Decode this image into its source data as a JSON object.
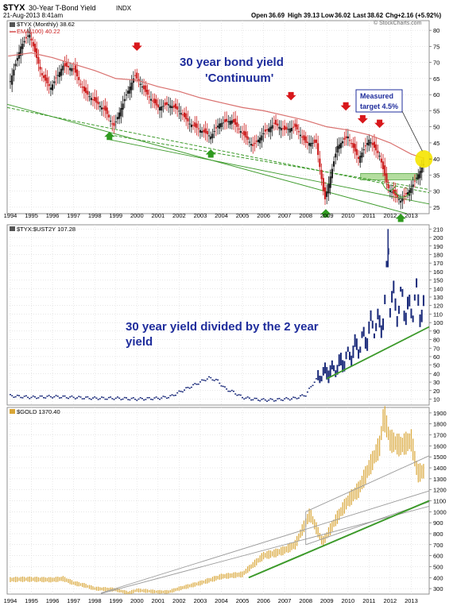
{
  "header": {
    "symbol": "$TYX",
    "name": "30-Year T-Bond Yield",
    "exchange": "INDX",
    "date": "21-Aug-2013 8:41am",
    "open_label": "Open",
    "open": "36.69",
    "high_label": "High",
    "high": "39.13",
    "low_label": "Low",
    "low": "36.02",
    "last_label": "Last",
    "last": "38.62",
    "chg_label": "Chg",
    "chg": "+2.16 (+5.92%)",
    "brand": "© StockCharts.com"
  },
  "colors": {
    "price_up": "#1a1a1a",
    "price_down": "#cc1f1f",
    "ema": "#d9706e",
    "support": "#3c9a2a",
    "ratio": "#1a2a7a",
    "gold": "#d9a637",
    "channel": "#9a9a9a",
    "annotation": "#1f2d9c",
    "highlight": "#f5e400"
  },
  "chart_data": [
    {
      "type": "line",
      "panel": "top",
      "legend": [
        "$TYX (Monthly) 38.62",
        "EMA(100) 40.22"
      ],
      "title": "30 year bond yield 'Continuum'",
      "annotation_lines": [
        "30 year bond yield",
        "'Continuum'"
      ],
      "callout_lines": [
        "Measured",
        "target 4.5%"
      ],
      "ylim": [
        23,
        83
      ],
      "yticks": [
        25,
        30,
        35,
        40,
        45,
        50,
        55,
        60,
        65,
        70,
        75,
        80
      ],
      "xticks": [
        "1994",
        "1995",
        "1996",
        "1997",
        "1998",
        "1999",
        "2000",
        "2001",
        "2002",
        "2003",
        "2004",
        "2005",
        "2006",
        "2007",
        "2008",
        "2009",
        "2010",
        "2011",
        "2012",
        "2013"
      ],
      "xlim": [
        1993.85,
        2013.85
      ],
      "series": [
        {
          "x": [
            1993.9,
            1994.5,
            1994.9,
            1995.5,
            1995.9,
            1996.5,
            1997.0,
            1997.5,
            1998.0,
            1998.5,
            1998.9,
            1999.5,
            1999.9,
            2000.5,
            2001.0,
            2001.5,
            2002.0,
            2002.5,
            2003.0,
            2003.5,
            2003.9,
            2004.5,
            2005.0,
            2005.5,
            2006.0,
            2006.5,
            2007.0,
            2007.5,
            2008.0,
            2008.5,
            2008.9,
            2009.5,
            2010.0,
            2010.5,
            2011.0,
            2011.5,
            2011.9,
            2012.5,
            2013.0,
            2013.6
          ],
          "values": [
            62,
            75,
            79,
            66,
            62,
            69,
            68,
            61,
            58,
            55,
            50,
            60,
            66,
            60,
            56,
            57,
            55,
            51,
            49,
            47,
            51,
            52,
            48,
            44,
            48,
            51,
            49,
            50,
            45,
            45,
            27,
            44,
            47,
            40,
            46,
            41,
            31,
            27,
            31,
            38.6
          ]
        },
        {
          "name": "EMA(100)",
          "x": [
            1993.9,
            1995.0,
            1996.0,
            1997.0,
            1998.0,
            1999.0,
            2000.0,
            2001.0,
            2002.0,
            2003.0,
            2004.0,
            2005.0,
            2006.0,
            2007.0,
            2008.0,
            2009.0,
            2010.0,
            2011.0,
            2012.0,
            2013.0,
            2013.6
          ],
          "values": [
            72,
            73,
            71.5,
            69.5,
            67.5,
            65,
            64.5,
            62.5,
            61,
            59,
            57.5,
            56,
            55,
            53.5,
            52,
            50,
            49,
            47.5,
            45,
            41.5,
            40.2
          ]
        }
      ],
      "support_lines": [
        {
          "x": [
            1993.85,
            2012.8
          ],
          "values": [
            57,
            23
          ]
        },
        {
          "x": [
            1993.85,
            2013.85
          ],
          "values": [
            56,
            29.5
          ]
        },
        {
          "x": [
            1998.7,
            2013.85
          ],
          "values": [
            47.5,
            30.5
          ]
        },
        {
          "x": [
            1998.7,
            2013.85
          ],
          "values": [
            46,
            26
          ]
        }
      ],
      "support_zone": {
        "x": [
          2010.6,
          2013.3
        ],
        "values": [
          33.5,
          35.5
        ]
      },
      "red_arrows_x": [
        2000.0,
        2007.3,
        2009.9,
        2010.7,
        2011.5
      ],
      "green_arrows_x": [
        1998.7,
        2003.5,
        2008.95,
        2012.5
      ],
      "highlight_point": {
        "x": 2013.6,
        "y": 40
      }
    },
    {
      "type": "scatter",
      "panel": "middle",
      "legend": [
        "$TYX:$UST2Y 107.28"
      ],
      "annotation_lines": [
        "30 year yield divided by the 2 year",
        "yield"
      ],
      "ylim": [
        3,
        215
      ],
      "yticks": [
        10,
        20,
        30,
        40,
        50,
        60,
        70,
        80,
        90,
        100,
        110,
        120,
        130,
        140,
        150,
        160,
        170,
        180,
        190,
        200,
        210
      ],
      "series": [
        {
          "x": [
            1993.9,
            1995.0,
            1996.0,
            1997.0,
            1998.0,
            1999.0,
            2000.0,
            2001.0,
            2001.6,
            2002.0,
            2002.5,
            2003.0,
            2003.4,
            2003.8,
            2004.2,
            2004.6,
            2005.0,
            2005.5,
            2006.0,
            2006.5,
            2007.0,
            2007.5,
            2008.0,
            2008.4,
            2008.7,
            2009.0,
            2009.3,
            2009.6,
            2010.0,
            2010.3,
            2010.6,
            2010.9,
            2011.2,
            2011.5,
            2011.8,
            2011.9,
            2012.0,
            2012.3,
            2012.6,
            2012.9,
            2013.2,
            2013.5,
            2013.7
          ],
          "values": [
            14,
            12,
            13,
            12,
            11,
            11,
            10,
            11,
            13,
            18,
            24,
            30,
            35,
            32,
            22,
            18,
            12,
            10,
            9,
            9,
            10,
            11,
            15,
            30,
            38,
            42,
            44,
            50,
            60,
            68,
            75,
            85,
            100,
            95,
            120,
            210,
            130,
            118,
            125,
            110,
            130,
            115,
            107
          ]
        }
      ],
      "support_lines": [
        {
          "x": [
            2009.0,
            2013.85
          ],
          "values": [
            34,
            95
          ]
        }
      ]
    },
    {
      "type": "line",
      "panel": "bottom",
      "legend": [
        "$GOLD 1370.40"
      ],
      "ylim": [
        250,
        1950
      ],
      "yticks": [
        300,
        400,
        500,
        600,
        700,
        800,
        900,
        1000,
        1100,
        1200,
        1300,
        1400,
        1500,
        1600,
        1700,
        1800,
        1900
      ],
      "xticks": [
        "1994",
        "1995",
        "1996",
        "1997",
        "1998",
        "1999",
        "2000",
        "2001",
        "2002",
        "2003",
        "2004",
        "2005",
        "2006",
        "2007",
        "2008",
        "2009",
        "2010",
        "2011",
        "2012",
        "2013"
      ],
      "series": [
        {
          "x": [
            1993.85,
            1994.5,
            1995.0,
            1996.0,
            1996.5,
            1997.0,
            1997.5,
            1998.0,
            1999.0,
            1999.6,
            2000.0,
            2001.0,
            2001.5,
            2002.0,
            2003.0,
            2004.0,
            2005.0,
            2006.0,
            2006.5,
            2007.0,
            2007.5,
            2008.0,
            2008.2,
            2008.8,
            2009.5,
            2010.0,
            2010.5,
            2011.0,
            2011.5,
            2011.7,
            2012.0,
            2012.5,
            2013.0,
            2013.3,
            2013.6
          ],
          "values": [
            380,
            385,
            385,
            380,
            390,
            350,
            330,
            300,
            290,
            260,
            285,
            270,
            270,
            300,
            350,
            410,
            430,
            600,
            620,
            650,
            700,
            900,
            980,
            720,
            950,
            1100,
            1200,
            1400,
            1600,
            1880,
            1650,
            1600,
            1650,
            1350,
            1370
          ]
        }
      ],
      "channel_lines": [
        {
          "x": [
            1998.3,
            2013.85
          ],
          "values": [
            260,
            1190
          ]
        },
        {
          "x": [
            1998.3,
            2013.85
          ],
          "values": [
            255,
            1050
          ]
        },
        {
          "x": [
            2008.0,
            2013.85
          ],
          "values": [
            1000,
            1510
          ]
        },
        {
          "x": [
            2008.0,
            2013.85
          ],
          "values": [
            700,
            1090
          ]
        }
      ],
      "support_line": {
        "x": [
          2005.3,
          2013.85
        ],
        "values": [
          400,
          1100
        ]
      }
    }
  ]
}
